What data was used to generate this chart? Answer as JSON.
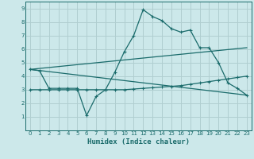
{
  "xlabel": "Humidex (Indice chaleur)",
  "bg_color": "#cce8ea",
  "grid_color": "#b0ced0",
  "line_color": "#1a6b6b",
  "xlim": [
    -0.5,
    23.5
  ],
  "ylim": [
    0,
    9.5
  ],
  "xticks": [
    0,
    1,
    2,
    3,
    4,
    5,
    6,
    7,
    8,
    9,
    10,
    11,
    12,
    13,
    14,
    15,
    16,
    17,
    18,
    19,
    20,
    21,
    22,
    23
  ],
  "yticks": [
    1,
    2,
    3,
    4,
    5,
    6,
    7,
    8,
    9
  ],
  "line1_x": [
    0,
    1,
    2,
    3,
    4,
    5,
    6,
    7,
    8,
    9,
    10,
    11,
    12,
    13,
    14,
    15,
    16,
    17,
    18,
    19,
    20,
    21,
    22,
    23
  ],
  "line1_y": [
    4.5,
    4.4,
    3.1,
    3.1,
    3.1,
    3.1,
    1.1,
    2.5,
    3.0,
    4.3,
    5.8,
    7.0,
    8.9,
    8.4,
    8.1,
    7.5,
    7.25,
    7.4,
    6.1,
    6.1,
    5.0,
    3.5,
    3.1,
    2.6
  ],
  "line2_x": [
    0,
    1,
    2,
    3,
    4,
    5,
    6,
    7,
    8,
    9,
    10,
    11,
    12,
    13,
    14,
    15,
    16,
    17,
    18,
    19,
    20,
    21,
    22,
    23
  ],
  "line2_y": [
    3.0,
    3.0,
    3.0,
    3.0,
    3.0,
    3.0,
    3.0,
    3.0,
    3.0,
    3.0,
    3.0,
    3.05,
    3.1,
    3.15,
    3.2,
    3.25,
    3.3,
    3.4,
    3.5,
    3.6,
    3.7,
    3.8,
    3.9,
    4.0
  ],
  "line3_x": [
    0,
    23
  ],
  "line3_y": [
    4.5,
    2.6
  ],
  "line4_x": [
    0,
    23
  ],
  "line4_y": [
    4.5,
    6.1
  ]
}
